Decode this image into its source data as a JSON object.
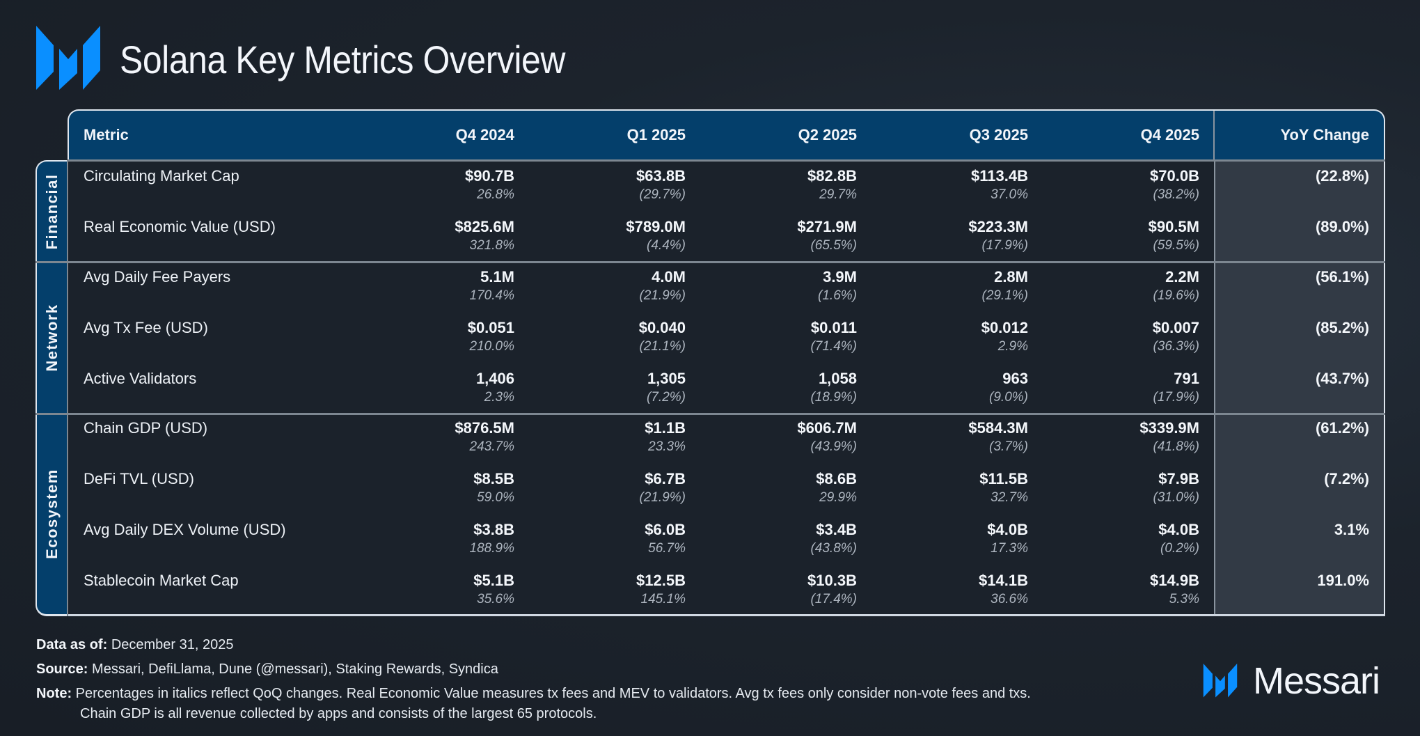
{
  "title": "Solana Key Metrics Overview",
  "colors": {
    "accent": "#0a8fff",
    "header_bg": "#043f6b",
    "yoy_bg": "#323a45",
    "page_bg": "#1b222b"
  },
  "table": {
    "columns": [
      "Metric",
      "Q4 2024",
      "Q1 2025",
      "Q2 2025",
      "Q3 2025",
      "Q4 2025",
      "YoY Change"
    ],
    "groups": [
      {
        "label": "Financial",
        "rows": [
          {
            "metric": "Circulating Market Cap",
            "values": [
              "$90.7B",
              "$63.8B",
              "$82.8B",
              "$113.4B",
              "$70.0B"
            ],
            "qoq": [
              "26.8%",
              "(29.7%)",
              "29.7%",
              "37.0%",
              "(38.2%)"
            ],
            "yoy": "(22.8%)"
          },
          {
            "metric": "Real Economic Value (USD)",
            "values": [
              "$825.6M",
              "$789.0M",
              "$271.9M",
              "$223.3M",
              "$90.5M"
            ],
            "qoq": [
              "321.8%",
              "(4.4%)",
              "(65.5%)",
              "(17.9%)",
              "(59.5%)"
            ],
            "yoy": "(89.0%)"
          }
        ]
      },
      {
        "label": "Network",
        "rows": [
          {
            "metric": "Avg Daily Fee Payers",
            "values": [
              "5.1M",
              "4.0M",
              "3.9M",
              "2.8M",
              "2.2M"
            ],
            "qoq": [
              "170.4%",
              "(21.9%)",
              "(1.6%)",
              "(29.1%)",
              "(19.6%)"
            ],
            "yoy": "(56.1%)"
          },
          {
            "metric": "Avg Tx Fee (USD)",
            "values": [
              "$0.051",
              "$0.040",
              "$0.011",
              "$0.012",
              "$0.007"
            ],
            "qoq": [
              "210.0%",
              "(21.1%)",
              "(71.4%)",
              "2.9%",
              "(36.3%)"
            ],
            "yoy": "(85.2%)"
          },
          {
            "metric": "Active Validators",
            "values": [
              "1,406",
              "1,305",
              "1,058",
              "963",
              "791"
            ],
            "qoq": [
              "2.3%",
              "(7.2%)",
              "(18.9%)",
              "(9.0%)",
              "(17.9%)"
            ],
            "yoy": "(43.7%)"
          }
        ]
      },
      {
        "label": "Ecosystem",
        "rows": [
          {
            "metric": "Chain GDP (USD)",
            "values": [
              "$876.5M",
              "$1.1B",
              "$606.7M",
              "$584.3M",
              "$339.9M"
            ],
            "qoq": [
              "243.7%",
              "23.3%",
              "(43.9%)",
              "(3.7%)",
              "(41.8%)"
            ],
            "yoy": "(61.2%)"
          },
          {
            "metric": "DeFi TVL (USD)",
            "values": [
              "$8.5B",
              "$6.7B",
              "$8.6B",
              "$11.5B",
              "$7.9B"
            ],
            "qoq": [
              "59.0%",
              "(21.9%)",
              "29.9%",
              "32.7%",
              "(31.0%)"
            ],
            "yoy": "(7.2%)"
          },
          {
            "metric": "Avg Daily DEX Volume (USD)",
            "values": [
              "$3.8B",
              "$6.0B",
              "$3.4B",
              "$4.0B",
              "$4.0B"
            ],
            "qoq": [
              "188.9%",
              "56.7%",
              "(43.8%)",
              "17.3%",
              "(0.2%)"
            ],
            "yoy": "3.1%"
          },
          {
            "metric": "Stablecoin Market Cap",
            "values": [
              "$5.1B",
              "$12.5B",
              "$10.3B",
              "$14.1B",
              "$14.9B"
            ],
            "qoq": [
              "35.6%",
              "145.1%",
              "(17.4%)",
              "36.6%",
              "5.3%"
            ],
            "yoy": "191.0%"
          }
        ]
      }
    ]
  },
  "footer": {
    "data_as_of_label": "Data as of:",
    "data_as_of": "December 31, 2025",
    "source_label": "Source:",
    "source": "Messari, DefiLlama, Dune (@messari), Staking Rewards, Syndica",
    "note_label": "Note:",
    "note_line1": "Percentages in italics reflect QoQ changes. Real Economic Value measures tx fees and MEV to validators. Avg tx fees only consider non-vote fees and txs.",
    "note_line2": "Chain GDP is all revenue collected by apps and consists of the largest 65 protocols."
  },
  "brand": {
    "name": "Messari",
    "icon": "messari-logo-icon"
  }
}
